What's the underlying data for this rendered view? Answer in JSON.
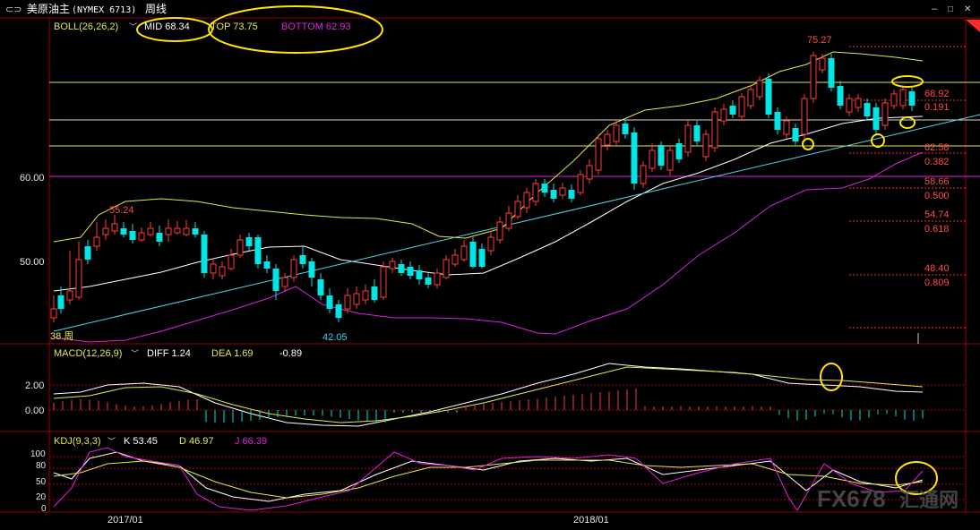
{
  "header": {
    "title": "美原油主",
    "code": "(NYMEX 6713)",
    "period": "周线",
    "minimize_glyph": "–",
    "maximize_glyph": "□",
    "close_glyph": "✕"
  },
  "boll": {
    "label": "BOLL(26,26,2)",
    "mid": "MID 68.34",
    "top": "TOP 73.75",
    "bottom": "BOTTOM 62.93"
  },
  "price_axis": {
    "t60": "60.00",
    "t50": "50.00"
  },
  "annotations": {
    "high": "75.27",
    "left_high": "55.24",
    "low": "42.05",
    "start_label": "38.周"
  },
  "fib_levels": [
    {
      "price": "68.92",
      "ratio": "0.191"
    },
    {
      "price": "62.58",
      "ratio": "0.382"
    },
    {
      "price": "58.66",
      "ratio": "0.500"
    },
    {
      "price": "54.74",
      "ratio": "0.618"
    },
    {
      "price": "48.40",
      "ratio": "0.809"
    }
  ],
  "macd": {
    "label": "MACD(12,26,9)",
    "diff": "DIFF 1.24",
    "dea": "DEA 1.69",
    "macd_value": "-0.89",
    "t2": "2.00",
    "t0": "0.00"
  },
  "kdj": {
    "label": "KDJ(9,3,3)",
    "k": "K 53.45",
    "d": "D 46.97",
    "j": "J 66.39",
    "ticks": [
      "100",
      "80",
      "50",
      "20",
      "0"
    ]
  },
  "time_axis": {
    "d2017": "2017/01",
    "d2018": "2018/01"
  },
  "watermark": {
    "brand": "FX678",
    "cn": "汇通网"
  },
  "colors": {
    "up": "#ff3b3b",
    "down": "#00e5e5",
    "mid": "#ffffff",
    "top": "#e8e84a",
    "bottom": "#e020e0",
    "highlight": "#ffe600",
    "trend": "#52d6e8",
    "grid": "#b40000"
  }
}
